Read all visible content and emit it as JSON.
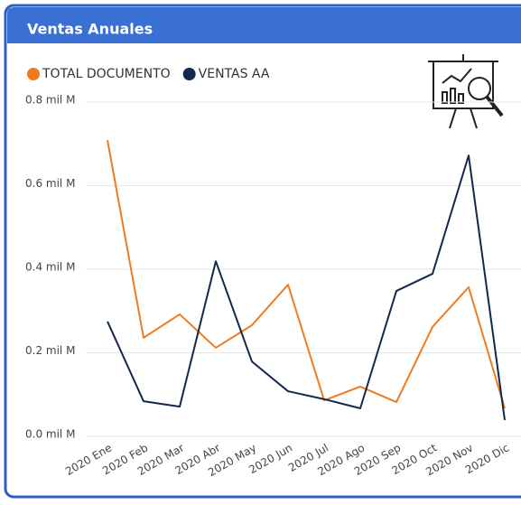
{
  "chart_data": {
    "type": "line",
    "title": "Ventas Anuales",
    "categories": [
      "2020 Ene",
      "2020 Feb",
      "2020 Mar",
      "2020 Abr",
      "2020 May",
      "2020 Jun",
      "2020 Jul",
      "2020 Ago",
      "2020 Sep",
      "2020 Oct",
      "2020 Nov",
      "2020 Dic"
    ],
    "series": [
      {
        "name": "TOTAL DOCUMENTO",
        "color": "#f07b1e",
        "values": [
          0.709,
          0.236,
          0.292,
          0.212,
          0.266,
          0.363,
          0.086,
          0.119,
          0.082,
          0.262,
          0.357,
          0.067
        ]
      },
      {
        "name": "VENTAS AA",
        "color": "#13284d",
        "values": [
          0.275,
          0.084,
          0.071,
          0.419,
          0.179,
          0.108,
          0.089,
          0.067,
          0.348,
          0.389,
          0.672,
          0.039
        ]
      }
    ],
    "ylim": [
      0,
      0.8
    ],
    "yticks": [
      {
        "value": 0,
        "label": "0.0 mil M"
      },
      {
        "value": 0.2,
        "label": "0.2 mil M"
      },
      {
        "value": 0.4,
        "label": "0.4 mil M"
      },
      {
        "value": 0.6,
        "label": "0.6 mil M"
      },
      {
        "value": 0.8,
        "label": "0.8 mil M"
      }
    ],
    "grid": true,
    "legend": "top-left"
  }
}
